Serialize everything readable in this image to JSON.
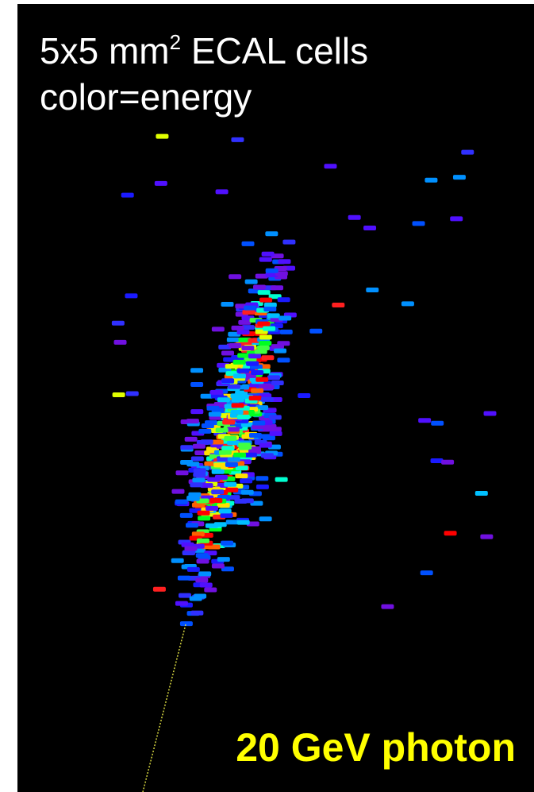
{
  "title": {
    "prefix": "5x5 mm",
    "superscript": "2",
    "suffix": " ECAL cells"
  },
  "subtitle": "color=energy",
  "label": "20 GeV photon"
}
